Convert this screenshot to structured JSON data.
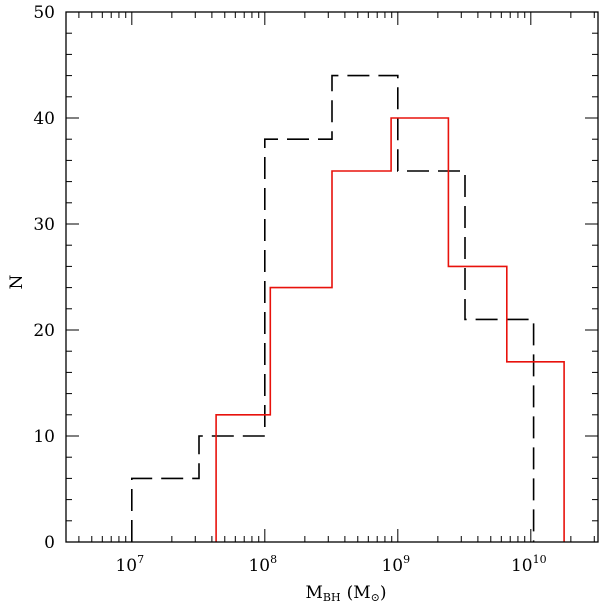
{
  "chart_data": {
    "type": "histogram",
    "title": "",
    "xlabel": {
      "main": "M",
      "subscript": "BH",
      "units_prefix": "(M",
      "units_subscript": "⊙",
      "units_suffix": ")"
    },
    "ylabel": "N",
    "x_scale": "log",
    "xlim": [
      3200000.0,
      32000000000.0
    ],
    "ylim": [
      0,
      50
    ],
    "y_ticks": [
      0,
      10,
      20,
      30,
      40,
      50
    ],
    "x_major_ticks": [
      {
        "value": 10000000.0,
        "base": "10",
        "exp": "7"
      },
      {
        "value": 100000000.0,
        "base": "10",
        "exp": "8"
      },
      {
        "value": 1000000000.0,
        "base": "10",
        "exp": "9"
      },
      {
        "value": 10000000000.0,
        "base": "10",
        "exp": "10"
      }
    ],
    "series": [
      {
        "style": "dashed",
        "color": "#000000",
        "bin_edges": [
          10000000.0,
          32000000.0,
          100000000.0,
          320000000.0,
          1000000000.0,
          3200000000.0,
          10500000000.0
        ],
        "counts": [
          6,
          10,
          38,
          44,
          35,
          21
        ]
      },
      {
        "style": "solid",
        "color": "#e8120c",
        "bin_edges": [
          43000000.0,
          110000000.0,
          320000000.0,
          890000000.0,
          2400000000.0,
          6600000000.0,
          17800000000.0
        ],
        "counts": [
          12,
          24,
          35,
          40,
          26,
          17
        ]
      }
    ]
  }
}
